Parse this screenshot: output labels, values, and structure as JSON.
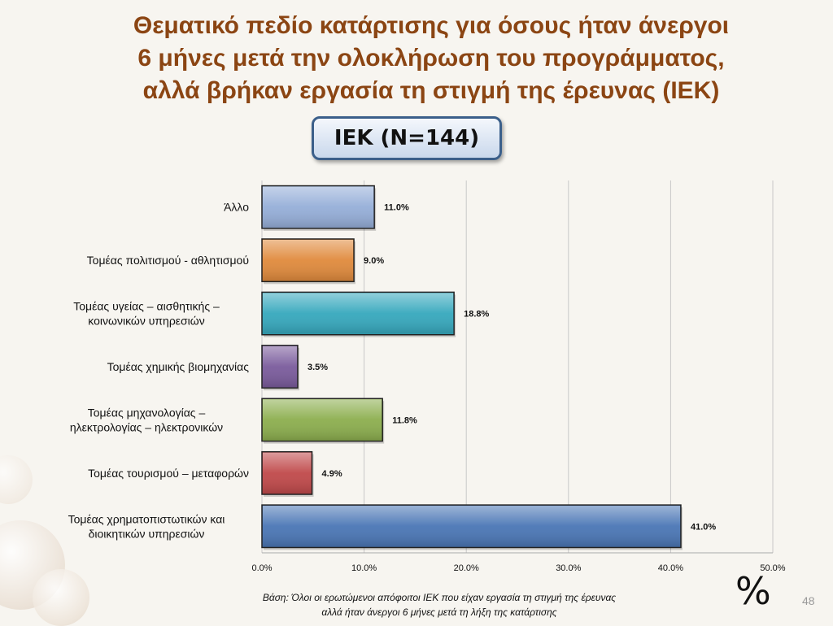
{
  "title_lines": [
    "Θεματικό πεδίο κατάρτισης για όσους ήταν άνεργοι",
    "6 μήνες μετά την ολοκλήρωση του προγράμματος,",
    "αλλά βρήκαν εργασία τη στιγμή της έρευνας  (ΙΕΚ)"
  ],
  "badge": "ΙΕΚ (Ν=144)",
  "footnote_lines": [
    "Βάση: Όλοι οι ερωτώμενοι απόφοιτοι ΙΕΚ που είχαν εργασία τη στιγμή της  έρευνας",
    "αλλά  ήταν άνεργοι 6 μήνες μετά τη λήξη της κατάρτισης"
  ],
  "unit_symbol": "%",
  "page_number": "48",
  "chart_data": {
    "type": "bar",
    "orientation": "horizontal",
    "categories": [
      [
        "Άλλο"
      ],
      [
        "Τομέας πολιτισμού - αθλητισμού"
      ],
      [
        "Τομέας υγείας – αισθητικής –",
        "κοινωνικών υπηρεσιών"
      ],
      [
        "Τομέας χημικής βιομηχανίας"
      ],
      [
        "Τομέας μηχανολογίας –",
        "ηλεκτρολογίας – ηλεκτρονικών"
      ],
      [
        "Τομέας τουρισμού – μεταφορών"
      ],
      [
        "Τομέας χρηματοπιστωτικών και",
        "διοικητικών υπηρεσιών"
      ]
    ],
    "values": [
      11.0,
      9.0,
      18.8,
      3.5,
      11.8,
      4.9,
      41.0
    ],
    "value_labels": [
      "11.0%",
      "9.0%",
      "18.8%",
      "3.5%",
      "11.8%",
      "4.9%",
      "41.0%"
    ],
    "bar_colors": [
      "#95aed8",
      "#e08a3c",
      "#36a8bd",
      "#7a5b9c",
      "#8cae4e",
      "#c0494a",
      "#4a76b5"
    ],
    "xlim": [
      0,
      50
    ],
    "ticks": [
      0,
      10,
      20,
      30,
      40,
      50
    ],
    "tick_labels": [
      "0.0%",
      "10.0%",
      "20.0%",
      "30.0%",
      "40.0%",
      "50.0%"
    ],
    "grid": true
  }
}
